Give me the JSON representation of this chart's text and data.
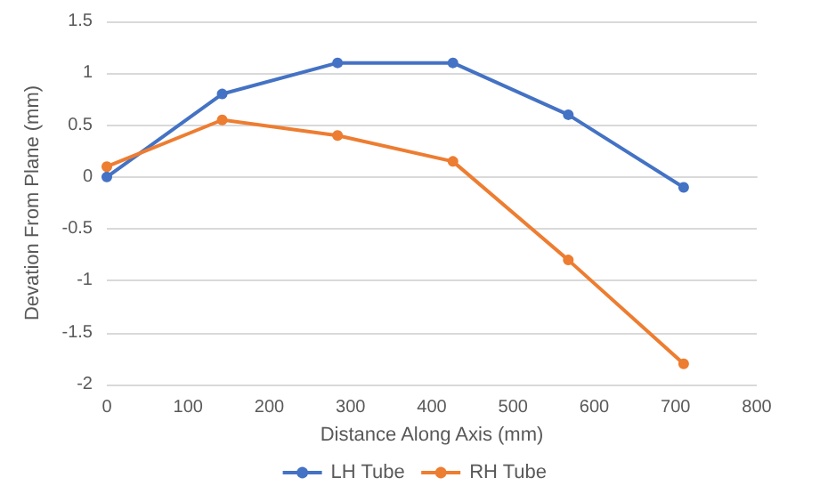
{
  "chart_data": {
    "type": "line",
    "xlabel": "Distance Along Axis (mm)",
    "ylabel": "Devation From Plane (mm)",
    "series": [
      {
        "name": "LH Tube",
        "color": "#4472c4",
        "x": [
          0,
          142,
          284,
          426,
          568,
          710
        ],
        "values": [
          0,
          0.8,
          1.1,
          1.1,
          0.6,
          -0.1
        ]
      },
      {
        "name": "RH Tube",
        "color": "#ed7d31",
        "x": [
          0,
          142,
          284,
          426,
          568,
          710
        ],
        "values": [
          0.1,
          0.55,
          0.4,
          0.15,
          -0.8,
          -1.8
        ]
      }
    ],
    "xlim": [
      0,
      800
    ],
    "xticks": [
      0,
      100,
      200,
      300,
      400,
      500,
      600,
      700,
      800
    ],
    "ylim": [
      -2,
      1.5
    ],
    "yticks": [
      -2,
      -1.5,
      -1,
      -0.5,
      0,
      0.5,
      1,
      1.5
    ],
    "grid": "y",
    "legend": "bottom",
    "marker": "circle",
    "line_style": "solid"
  }
}
